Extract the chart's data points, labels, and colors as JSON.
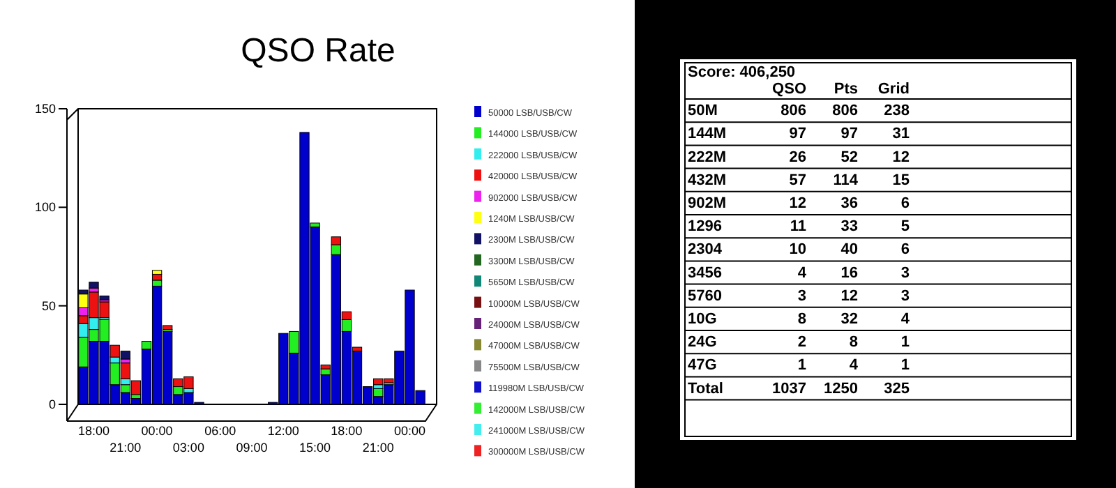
{
  "chart_data": [
    {
      "type": "bar",
      "title": "QSO Rate",
      "stacked": true,
      "legend": "right",
      "ylim": [
        0,
        150
      ],
      "yticks": [
        0,
        50,
        100,
        150
      ],
      "categories": [
        null,
        "18:00",
        null,
        null,
        "21:00",
        null,
        null,
        "00:00",
        null,
        null,
        "03:00",
        null,
        null,
        "06:00",
        null,
        null,
        "09:00",
        null,
        null,
        "12:00",
        null,
        null,
        "15:00",
        null,
        null,
        "18:00",
        null,
        null,
        "21:00",
        null,
        null,
        "00:00",
        null
      ],
      "series": [
        {
          "name": "50000 LSB/USB/CW",
          "color": "#0000cc",
          "values": [
            19,
            32,
            32,
            10,
            6,
            3,
            28,
            60,
            37,
            5,
            6,
            1,
            0,
            0,
            0,
            0,
            0,
            0,
            1,
            36,
            26,
            138,
            90,
            15,
            76,
            37,
            27,
            9,
            4,
            10,
            27,
            58,
            7
          ]
        },
        {
          "name": "144000 LSB/USB/CW",
          "color": "#22ee22",
          "values": [
            15,
            6,
            11,
            11,
            4,
            2,
            4,
            3,
            1,
            4,
            0,
            0,
            0,
            0,
            0,
            0,
            0,
            0,
            0,
            0,
            11,
            0,
            2,
            3,
            5,
            6,
            0,
            0,
            4,
            0,
            0,
            0,
            0
          ]
        },
        {
          "name": "222000 LSB/USB/CW",
          "color": "#33eeee",
          "values": [
            7,
            6,
            1,
            3,
            3,
            0,
            0,
            0,
            0,
            0,
            2,
            0,
            0,
            0,
            0,
            0,
            0,
            0,
            0,
            0,
            0,
            0,
            0,
            0,
            0,
            0,
            0,
            0,
            2,
            1,
            0,
            0,
            0
          ]
        },
        {
          "name": "420000 LSB/USB/CW",
          "color": "#ee1111",
          "values": [
            4,
            13,
            8,
            6,
            8,
            7,
            0,
            3,
            2,
            4,
            6,
            0,
            0,
            0,
            0,
            0,
            0,
            0,
            0,
            0,
            0,
            0,
            0,
            2,
            4,
            4,
            2,
            0,
            3,
            2,
            0,
            0,
            0
          ]
        },
        {
          "name": "902000 LSB/USB/CW",
          "color": "#ee22ee",
          "values": [
            4,
            2,
            1,
            0,
            2,
            0,
            0,
            0,
            0,
            0,
            0,
            0,
            0,
            0,
            0,
            0,
            0,
            0,
            0,
            0,
            0,
            0,
            0,
            0,
            0,
            0,
            0,
            0,
            0,
            0,
            0,
            0,
            0
          ]
        },
        {
          "name": "1240M LSB/USB/CW",
          "color": "#ffff11",
          "values": [
            7,
            0,
            0,
            0,
            0,
            0,
            0,
            2,
            0,
            0,
            0,
            0,
            0,
            0,
            0,
            0,
            0,
            0,
            0,
            0,
            0,
            0,
            0,
            0,
            0,
            0,
            0,
            0,
            0,
            0,
            0,
            0,
            0
          ]
        },
        {
          "name": "2300M LSB/USB/CW",
          "color": "#111166",
          "values": [
            2,
            3,
            2,
            0,
            4,
            0,
            0,
            0,
            0,
            0,
            0,
            0,
            0,
            0,
            0,
            0,
            0,
            0,
            0,
            0,
            0,
            0,
            0,
            0,
            0,
            0,
            0,
            0,
            0,
            0,
            0,
            0,
            0
          ]
        },
        {
          "name": "3300M LSB/USB/CW",
          "color": "#226622",
          "values": [
            0,
            0,
            0,
            0,
            0,
            0,
            0,
            0,
            0,
            0,
            0,
            0,
            0,
            0,
            0,
            0,
            0,
            0,
            0,
            0,
            0,
            0,
            0,
            0,
            0,
            0,
            0,
            0,
            0,
            0,
            0,
            0,
            0
          ]
        },
        {
          "name": "5650M LSB/USB/CW",
          "color": "#118877",
          "values": [
            0,
            0,
            0,
            0,
            0,
            0,
            0,
            0,
            0,
            0,
            0,
            0,
            0,
            0,
            0,
            0,
            0,
            0,
            0,
            0,
            0,
            0,
            0,
            0,
            0,
            0,
            0,
            0,
            0,
            0,
            0,
            0,
            0
          ]
        },
        {
          "name": "10000M LSB/USB/CW",
          "color": "#771111",
          "values": [
            0,
            0,
            0,
            0,
            0,
            0,
            0,
            0,
            0,
            0,
            0,
            0,
            0,
            0,
            0,
            0,
            0,
            0,
            0,
            0,
            0,
            0,
            0,
            0,
            0,
            0,
            0,
            0,
            0,
            0,
            0,
            0,
            0
          ]
        },
        {
          "name": "24000M LSB/USB/CW",
          "color": "#662277",
          "values": [
            0,
            0,
            0,
            0,
            0,
            0,
            0,
            0,
            0,
            0,
            0,
            0,
            0,
            0,
            0,
            0,
            0,
            0,
            0,
            0,
            0,
            0,
            0,
            0,
            0,
            0,
            0,
            0,
            0,
            0,
            0,
            0,
            0
          ]
        },
        {
          "name": "47000M LSB/USB/CW",
          "color": "#888833",
          "values": [
            0,
            0,
            0,
            0,
            0,
            0,
            0,
            0,
            0,
            0,
            0,
            0,
            0,
            0,
            0,
            0,
            0,
            0,
            0,
            0,
            0,
            0,
            0,
            0,
            0,
            0,
            0,
            0,
            0,
            0,
            0,
            0,
            0
          ]
        },
        {
          "name": "75500M LSB/USB/CW",
          "color": "#888888",
          "values": [
            0,
            0,
            0,
            0,
            0,
            0,
            0,
            0,
            0,
            0,
            0,
            0,
            0,
            0,
            0,
            0,
            0,
            0,
            0,
            0,
            0,
            0,
            0,
            0,
            0,
            0,
            0,
            0,
            0,
            0,
            0,
            0,
            0
          ]
        },
        {
          "name": "119980M LSB/USB/CW",
          "color": "#1111cc",
          "values": [
            0,
            0,
            0,
            0,
            0,
            0,
            0,
            0,
            0,
            0,
            0,
            0,
            0,
            0,
            0,
            0,
            0,
            0,
            0,
            0,
            0,
            0,
            0,
            0,
            0,
            0,
            0,
            0,
            0,
            0,
            0,
            0,
            0
          ]
        },
        {
          "name": "142000M LSB/USB/CW",
          "color": "#33ee33",
          "values": [
            0,
            0,
            0,
            0,
            0,
            0,
            0,
            0,
            0,
            0,
            0,
            0,
            0,
            0,
            0,
            0,
            0,
            0,
            0,
            0,
            0,
            0,
            0,
            0,
            0,
            0,
            0,
            0,
            0,
            0,
            0,
            0,
            0
          ]
        },
        {
          "name": "241000M LSB/USB/CW",
          "color": "#44eeee",
          "values": [
            0,
            0,
            0,
            0,
            0,
            0,
            0,
            0,
            0,
            0,
            0,
            0,
            0,
            0,
            0,
            0,
            0,
            0,
            0,
            0,
            0,
            0,
            0,
            0,
            0,
            0,
            0,
            0,
            0,
            0,
            0,
            0,
            0
          ]
        },
        {
          "name": "300000M LSB/USB/CW",
          "color": "#ee2222",
          "values": [
            0,
            0,
            0,
            0,
            0,
            0,
            0,
            0,
            0,
            0,
            0,
            0,
            0,
            0,
            0,
            0,
            0,
            0,
            0,
            0,
            0,
            0,
            0,
            0,
            0,
            0,
            0,
            0,
            0,
            0,
            0,
            0,
            0
          ]
        }
      ]
    },
    {
      "type": "other",
      "title": "Score: 406,250",
      "data_labels": true,
      "categories": [
        "50M",
        "144M",
        "222M",
        "432M",
        "902M",
        "1296",
        "2304",
        "3456",
        "5760",
        "10G",
        "24G",
        "47G",
        "Total"
      ],
      "series": [
        {
          "name": "QSO",
          "values": [
            806,
            97,
            26,
            57,
            12,
            11,
            10,
            4,
            3,
            8,
            2,
            1,
            1037
          ]
        },
        {
          "name": "Pts",
          "values": [
            806,
            97,
            52,
            114,
            36,
            33,
            40,
            16,
            12,
            32,
            8,
            4,
            1250
          ]
        },
        {
          "name": "Grid",
          "values": [
            238,
            31,
            12,
            15,
            6,
            5,
            6,
            3,
            3,
            4,
            1,
            1,
            325
          ]
        }
      ]
    }
  ]
}
